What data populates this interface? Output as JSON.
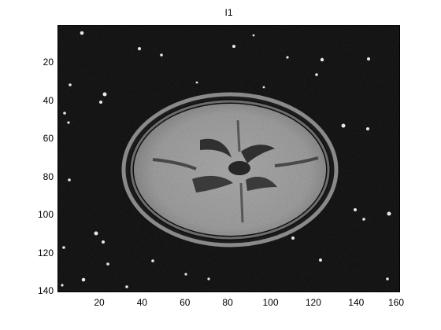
{
  "figure": {
    "title": "I1",
    "image_description_icon": "mri-brain-axial-slice-noisy",
    "x_axis": {
      "ticks": [
        "20",
        "40",
        "60",
        "80",
        "100",
        "120",
        "140",
        "160"
      ],
      "range": [
        0.5,
        160.5
      ]
    },
    "y_axis": {
      "ticks": [
        "20",
        "40",
        "60",
        "80",
        "100",
        "120",
        "140"
      ],
      "range": [
        0.5,
        140.5
      ],
      "reversed": true
    },
    "colormap": "gray",
    "background": "#050505"
  }
}
